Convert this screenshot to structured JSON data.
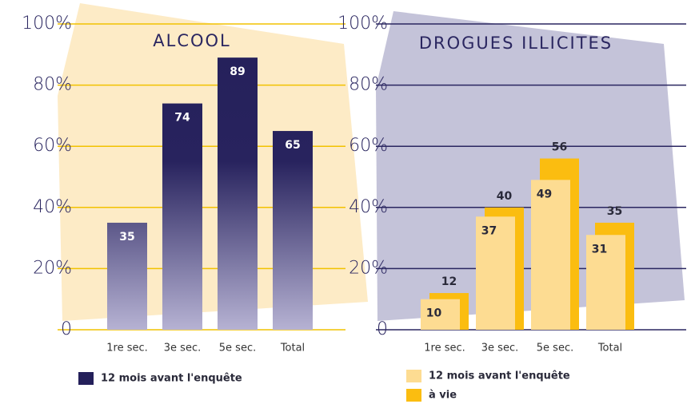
{
  "chart_data": [
    {
      "type": "bar",
      "title": "ALCOOL",
      "categories": [
        "1re sec.",
        "3e sec.",
        "5e sec.",
        "Total"
      ],
      "series": [
        {
          "name": "12 mois avant l'enquête",
          "color": "#24205a",
          "values": [
            35,
            74,
            89,
            65
          ]
        }
      ],
      "ylim": [
        0,
        100
      ],
      "yticks": [
        0,
        {
          "value": 20,
          "label": "20%"
        },
        {
          "value": 40,
          "label": "40%"
        },
        {
          "value": 60,
          "label": "60%"
        },
        {
          "value": 80,
          "label": "80%"
        },
        {
          "value": 100,
          "label": "100%"
        }
      ],
      "grid": true,
      "grid_color": "#f2c200"
    },
    {
      "type": "bar",
      "title": "DROGUES ILLICITES",
      "categories": [
        "1re sec.",
        "3e sec.",
        "5e sec.",
        "Total"
      ],
      "series": [
        {
          "name": "12 mois avant l'enquête",
          "color": "#fddc92",
          "values": [
            10,
            37,
            49,
            31
          ]
        },
        {
          "name": "à vie",
          "color": "#fbbd10",
          "values": [
            12,
            40,
            56,
            35
          ]
        }
      ],
      "ylim": [
        0,
        100
      ],
      "yticks": [
        0,
        {
          "value": 20,
          "label": "20%"
        },
        {
          "value": 40,
          "label": "40%"
        },
        {
          "value": 60,
          "label": "60%"
        },
        {
          "value": 80,
          "label": "80%"
        },
        {
          "value": 100,
          "label": "100%"
        }
      ],
      "grid": true,
      "grid_color": "#2a2660"
    }
  ]
}
